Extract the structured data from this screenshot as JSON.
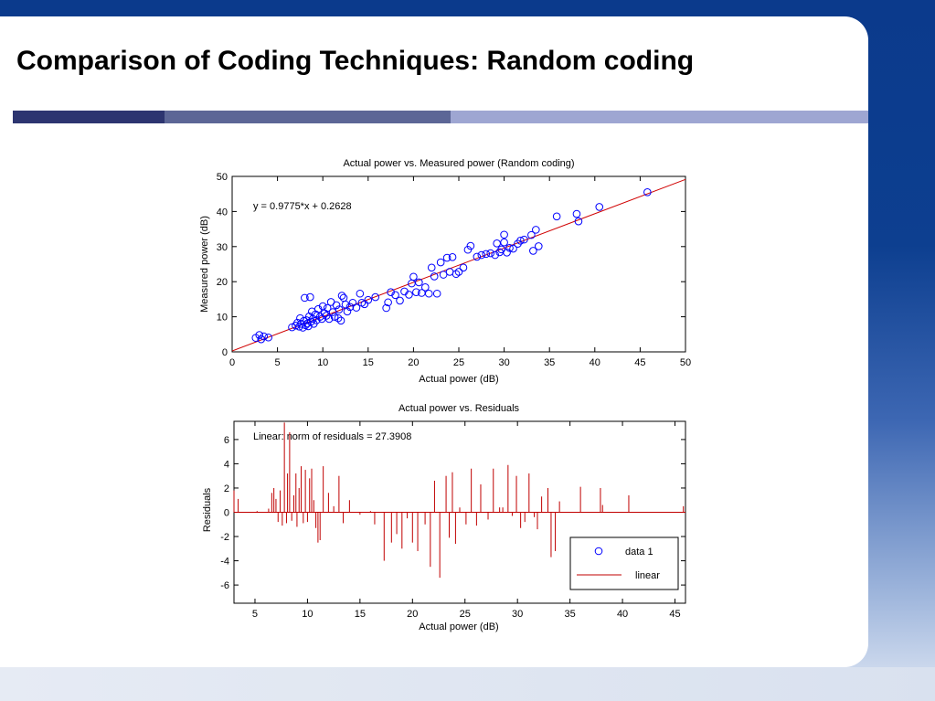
{
  "slide": {
    "title": "Comparison of Coding Techniques: Random coding"
  },
  "chart_data": [
    {
      "type": "scatter",
      "title": "Actual power vs. Measured power (Random coding)",
      "xlabel": "Actual power (dB)",
      "ylabel": "Measured power (dB)",
      "xlim": [
        0,
        50
      ],
      "ylim": [
        0,
        50
      ],
      "xticks": [
        "0",
        "5",
        "10",
        "15",
        "20",
        "25",
        "30",
        "35",
        "40",
        "45",
        "50"
      ],
      "yticks": [
        "0",
        "10",
        "20",
        "30",
        "40",
        "50"
      ],
      "annotation": "y = 0.9775*x + 0.2628",
      "fit": {
        "slope": 0.9775,
        "intercept": 0.2628
      },
      "marker_color": "#0000ff",
      "line_color": "#d00000",
      "series": [
        {
          "points": [
            [
              2.6,
              4.0
            ],
            [
              3.0,
              4.8
            ],
            [
              3.2,
              3.6
            ],
            [
              3.5,
              4.4
            ],
            [
              4.0,
              4.1
            ],
            [
              6.6,
              7.0
            ],
            [
              7.0,
              7.5
            ],
            [
              7.2,
              8.3
            ],
            [
              7.4,
              7.2
            ],
            [
              7.5,
              9.6
            ],
            [
              7.6,
              8.0
            ],
            [
              7.8,
              6.9
            ],
            [
              7.9,
              8.8
            ],
            [
              8.0,
              15.4
            ],
            [
              8.1,
              7.6
            ],
            [
              8.2,
              9.0
            ],
            [
              8.3,
              8.1
            ],
            [
              8.4,
              7.3
            ],
            [
              8.5,
              10.1
            ],
            [
              8.6,
              15.6
            ],
            [
              8.7,
              8.6
            ],
            [
              8.8,
              11.5
            ],
            [
              8.9,
              9.4
            ],
            [
              9.0,
              8.0
            ],
            [
              9.2,
              10.7
            ],
            [
              9.3,
              9.0
            ],
            [
              9.5,
              12.2
            ],
            [
              9.7,
              10.0
            ],
            [
              9.9,
              9.4
            ],
            [
              10.0,
              13.0
            ],
            [
              10.2,
              11.0
            ],
            [
              10.4,
              10.3
            ],
            [
              10.5,
              12.5
            ],
            [
              10.7,
              9.4
            ],
            [
              10.9,
              14.2
            ],
            [
              11.1,
              11.3
            ],
            [
              11.3,
              10.0
            ],
            [
              11.5,
              13.3
            ],
            [
              11.7,
              9.6
            ],
            [
              11.8,
              12.1
            ],
            [
              12.0,
              8.9
            ],
            [
              12.1,
              16.0
            ],
            [
              12.3,
              15.4
            ],
            [
              12.5,
              13.5
            ],
            [
              12.7,
              11.5
            ],
            [
              13.0,
              12.8
            ],
            [
              13.3,
              14.0
            ],
            [
              13.7,
              12.6
            ],
            [
              14.1,
              16.6
            ],
            [
              14.3,
              14.0
            ],
            [
              14.6,
              13.6
            ],
            [
              15.0,
              14.8
            ],
            [
              15.8,
              15.6
            ],
            [
              17.0,
              12.5
            ],
            [
              17.2,
              14.1
            ],
            [
              17.5,
              17.0
            ],
            [
              18.0,
              16.2
            ],
            [
              18.5,
              14.6
            ],
            [
              19.0,
              17.2
            ],
            [
              19.5,
              16.3
            ],
            [
              19.8,
              19.5
            ],
            [
              20.0,
              21.4
            ],
            [
              20.3,
              17.0
            ],
            [
              20.6,
              19.8
            ],
            [
              20.9,
              16.8
            ],
            [
              21.3,
              18.4
            ],
            [
              21.7,
              16.6
            ],
            [
              22.0,
              24.0
            ],
            [
              22.3,
              21.5
            ],
            [
              22.6,
              16.6
            ],
            [
              23.0,
              25.5
            ],
            [
              23.3,
              22.0
            ],
            [
              23.7,
              26.8
            ],
            [
              24.0,
              22.8
            ],
            [
              24.3,
              27.0
            ],
            [
              24.7,
              22.2
            ],
            [
              25.0,
              22.8
            ],
            [
              25.5,
              24.0
            ],
            [
              26.0,
              29.1
            ],
            [
              26.3,
              30.2
            ],
            [
              27.0,
              27.1
            ],
            [
              27.5,
              27.6
            ],
            [
              28.0,
              27.9
            ],
            [
              28.5,
              28.1
            ],
            [
              29.0,
              27.6
            ],
            [
              29.2,
              30.9
            ],
            [
              29.5,
              28.4
            ],
            [
              29.7,
              29.2
            ],
            [
              30.0,
              31.2
            ],
            [
              30.0,
              33.4
            ],
            [
              30.3,
              28.3
            ],
            [
              30.6,
              29.6
            ],
            [
              31.0,
              29.4
            ],
            [
              31.5,
              30.8
            ],
            [
              31.8,
              31.7
            ],
            [
              32.2,
              32.0
            ],
            [
              33.0,
              33.3
            ],
            [
              33.2,
              28.8
            ],
            [
              33.5,
              34.8
            ],
            [
              33.8,
              30.1
            ],
            [
              35.8,
              38.6
            ],
            [
              38.0,
              39.3
            ],
            [
              38.2,
              37.2
            ],
            [
              40.5,
              41.3
            ],
            [
              45.8,
              45.5
            ]
          ]
        }
      ]
    },
    {
      "type": "bar",
      "title": "Actual power vs. Residuals",
      "xlabel": "Actual power (dB)",
      "ylabel": "Residuals",
      "xlim": [
        3,
        46
      ],
      "ylim": [
        -7.5,
        7.5
      ],
      "xticks": [
        "5",
        "10",
        "15",
        "20",
        "25",
        "30",
        "35",
        "40",
        "45"
      ],
      "yticks": [
        "6",
        "4",
        "2",
        "0",
        "-2",
        "-4",
        "-6"
      ],
      "annotation": "Linear: norm of residuals = 27.3908",
      "color": "#c00000",
      "legend": {
        "position": "bottom-right",
        "entries": [
          "data 1",
          "linear"
        ]
      },
      "stems": [
        [
          3.0,
          1.8
        ],
        [
          3.4,
          1.1
        ],
        [
          5.2,
          0.1
        ],
        [
          6.3,
          0.3
        ],
        [
          6.6,
          1.6
        ],
        [
          6.8,
          2.0
        ],
        [
          7.0,
          1.1
        ],
        [
          7.2,
          -0.8
        ],
        [
          7.4,
          1.8
        ],
        [
          7.6,
          -1.1
        ],
        [
          7.8,
          7.4
        ],
        [
          8.0,
          -0.9
        ],
        [
          8.1,
          3.2
        ],
        [
          8.3,
          6.6
        ],
        [
          8.5,
          -0.7
        ],
        [
          8.7,
          1.4
        ],
        [
          8.9,
          3.2
        ],
        [
          9.0,
          -1.2
        ],
        [
          9.2,
          2.0
        ],
        [
          9.4,
          3.8
        ],
        [
          9.6,
          -0.9
        ],
        [
          9.8,
          3.5
        ],
        [
          10.0,
          -0.8
        ],
        [
          10.2,
          2.8
        ],
        [
          10.4,
          3.6
        ],
        [
          10.6,
          1.0
        ],
        [
          10.8,
          -1.3
        ],
        [
          11.0,
          -2.5
        ],
        [
          11.2,
          -2.3
        ],
        [
          11.5,
          3.8
        ],
        [
          12.0,
          1.6
        ],
        [
          12.5,
          0.5
        ],
        [
          13.0,
          3.0
        ],
        [
          13.4,
          -0.9
        ],
        [
          14.0,
          1.0
        ],
        [
          15.0,
          -0.2
        ],
        [
          16.0,
          0.1
        ],
        [
          16.4,
          -1.0
        ],
        [
          17.3,
          -4.0
        ],
        [
          18.0,
          -2.5
        ],
        [
          18.5,
          -1.8
        ],
        [
          19.0,
          -3.0
        ],
        [
          19.5,
          -0.5
        ],
        [
          20.0,
          -2.5
        ],
        [
          20.5,
          -3.2
        ],
        [
          21.2,
          -1.0
        ],
        [
          21.7,
          -4.5
        ],
        [
          22.1,
          2.6
        ],
        [
          22.6,
          -5.4
        ],
        [
          23.2,
          3.0
        ],
        [
          23.5,
          -2.1
        ],
        [
          23.8,
          3.3
        ],
        [
          24.1,
          -2.6
        ],
        [
          24.5,
          0.4
        ],
        [
          25.1,
          -1.0
        ],
        [
          25.6,
          3.6
        ],
        [
          26.1,
          -1.1
        ],
        [
          26.5,
          2.3
        ],
        [
          27.2,
          -0.6
        ],
        [
          27.7,
          3.6
        ],
        [
          28.3,
          0.4
        ],
        [
          28.6,
          0.4
        ],
        [
          29.1,
          3.9
        ],
        [
          29.5,
          -0.3
        ],
        [
          29.9,
          3.0
        ],
        [
          30.3,
          -1.3
        ],
        [
          30.7,
          -0.8
        ],
        [
          31.1,
          3.2
        ],
        [
          31.6,
          -0.4
        ],
        [
          31.9,
          -1.4
        ],
        [
          32.3,
          1.3
        ],
        [
          32.9,
          2.0
        ],
        [
          33.2,
          -3.7
        ],
        [
          33.6,
          -3.2
        ],
        [
          34.0,
          0.9
        ],
        [
          36.0,
          2.1
        ],
        [
          37.9,
          2.0
        ],
        [
          38.1,
          0.6
        ],
        [
          40.6,
          1.4
        ],
        [
          45.8,
          0.5
        ]
      ]
    }
  ]
}
